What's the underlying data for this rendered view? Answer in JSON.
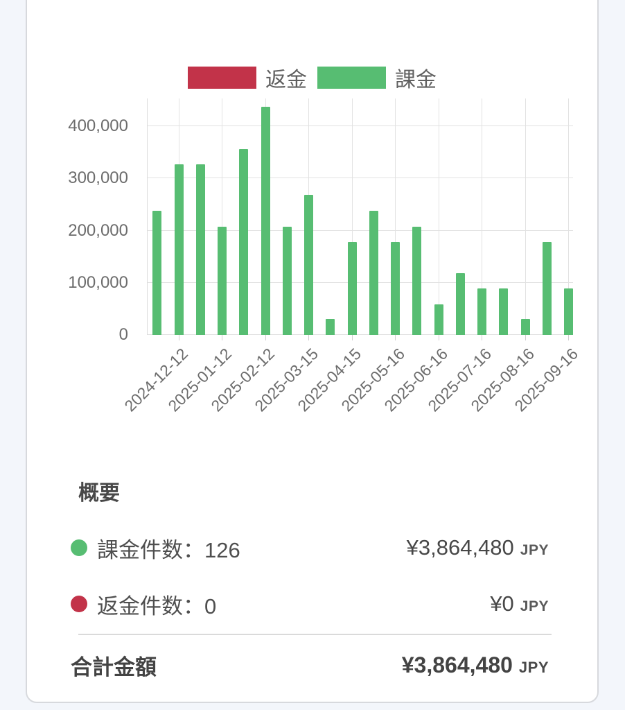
{
  "legend": {
    "items": [
      {
        "label": "返金",
        "color": "#c23349"
      },
      {
        "label": "課金",
        "color": "#57bd72"
      }
    ]
  },
  "chart_data": {
    "type": "bar",
    "title": "",
    "xlabel": "",
    "ylabel": "",
    "xtick_labels": [
      "2024-12-12",
      "2025-01-12",
      "2025-02-12",
      "2025-03-15",
      "2025-04-15",
      "2025-05-16",
      "2025-06-16",
      "2025-07-16",
      "2025-08-16",
      "2025-09-16"
    ],
    "xticks_every": 2,
    "ytick_labels": [
      "0",
      "100,000",
      "200,000",
      "300,000",
      "400,000"
    ],
    "ylim": [
      0,
      453000
    ],
    "grid": true,
    "legend_position": "top",
    "series": [
      {
        "name": "課金",
        "color": "#57bd72",
        "values": [
          238000,
          327000,
          327000,
          208000,
          357000,
          437000,
          208000,
          268000,
          30000,
          178000,
          238000,
          178000,
          208000,
          59000,
          118000,
          89000,
          89000,
          30000,
          178000,
          89000
        ]
      },
      {
        "name": "返金",
        "color": "#c23349",
        "values": [
          0,
          0,
          0,
          0,
          0,
          0,
          0,
          0,
          0,
          0,
          0,
          0,
          0,
          0,
          0,
          0,
          0,
          0,
          0,
          0
        ]
      }
    ]
  },
  "summary": {
    "heading": "概要",
    "rows": [
      {
        "dot": "green-dot",
        "dot_color": "#57bd72",
        "label": "課金件数：126",
        "amount": "¥3,864,480",
        "currency": "JPY"
      },
      {
        "dot": "red-dot",
        "dot_color": "#c23349",
        "label": "返金件数：0",
        "amount": "¥0",
        "currency": "JPY"
      }
    ],
    "total": {
      "label": "合計金額",
      "amount": "¥3,864,480",
      "currency": "JPY"
    }
  }
}
